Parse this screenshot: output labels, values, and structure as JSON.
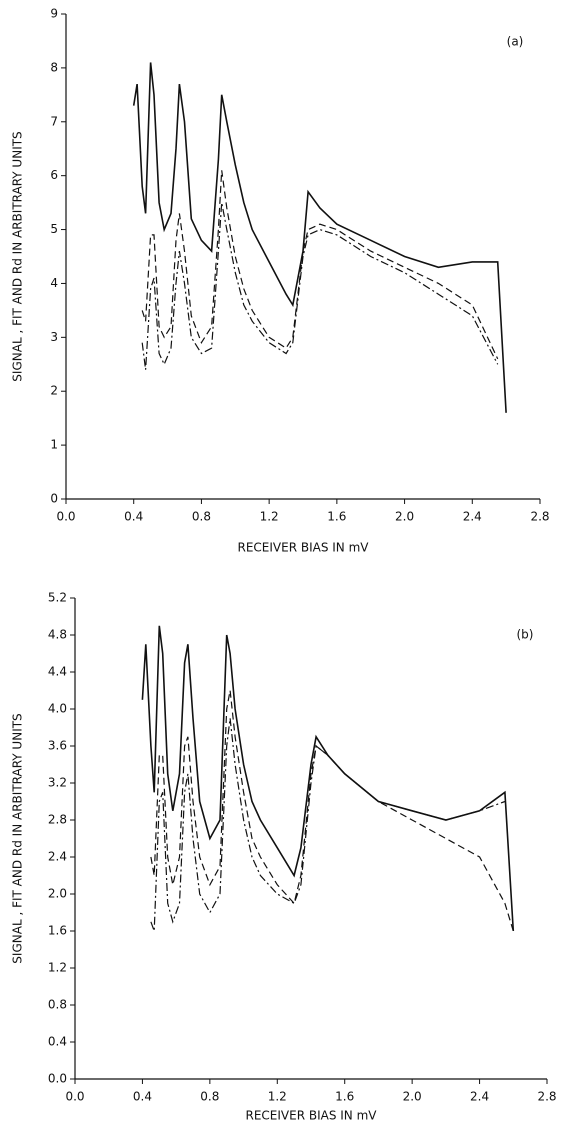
{
  "chart_data": [
    {
      "type": "line",
      "annotation": "(a)",
      "x_label": "RECEIVER BIAS IN  mV",
      "y_label": "SIGNAL , FIT AND Rd IN ARBITRARY UNITS",
      "x": [
        0.4,
        0.42,
        0.45,
        0.47,
        0.5,
        0.52,
        0.55,
        0.58,
        0.62,
        0.65,
        0.67,
        0.7,
        0.74,
        0.8,
        0.86,
        0.9,
        0.92,
        0.95,
        1.0,
        1.05,
        1.1,
        1.2,
        1.3,
        1.34,
        1.4,
        1.43,
        1.5,
        1.6,
        1.8,
        2.0,
        2.2,
        2.4,
        2.55,
        2.6
      ],
      "series": [
        {
          "color": "#111111",
          "line_style": "solid",
          "values": [
            7.3,
            7.7,
            5.8,
            5.3,
            8.1,
            7.5,
            5.5,
            5.0,
            5.3,
            6.5,
            7.7,
            7.0,
            5.2,
            4.8,
            4.6,
            6.3,
            7.5,
            7.0,
            6.2,
            5.5,
            5.0,
            4.4,
            3.8,
            3.6,
            4.6,
            5.7,
            5.4,
            5.1,
            4.8,
            4.5,
            4.3,
            4.4,
            4.4,
            1.6
          ]
        },
        {
          "color": "#111111",
          "line_style": "dashed",
          "values": [
            null,
            null,
            3.5,
            3.3,
            4.9,
            4.9,
            3.2,
            3.0,
            3.2,
            4.8,
            5.3,
            4.6,
            3.4,
            2.9,
            3.2,
            5.0,
            6.1,
            5.4,
            4.5,
            3.9,
            3.5,
            3.0,
            2.8,
            3.0,
            4.6,
            5.0,
            5.1,
            5.0,
            4.6,
            4.3,
            4.0,
            3.6,
            2.6,
            null
          ]
        },
        {
          "color": "#111111",
          "line_style": "dashdot",
          "values": [
            null,
            null,
            2.9,
            2.4,
            3.9,
            4.1,
            2.7,
            2.5,
            2.8,
            4.0,
            4.6,
            4.0,
            3.0,
            2.7,
            2.8,
            4.6,
            5.5,
            5.0,
            4.2,
            3.6,
            3.3,
            2.9,
            2.7,
            2.9,
            4.5,
            4.9,
            5.0,
            4.9,
            4.5,
            4.2,
            3.8,
            3.4,
            2.5,
            null
          ]
        }
      ],
      "xlim": [
        0,
        2.8
      ],
      "xticks": [
        {
          "value": 0,
          "label": "0.0"
        },
        0.4,
        0.8,
        1.2,
        1.6,
        {
          "value": 2,
          "label": "2.0"
        },
        2.4,
        2.8
      ],
      "ylim": [
        0,
        9
      ],
      "yticks": [
        0,
        1,
        2,
        3,
        4,
        5,
        6,
        7,
        8,
        9
      ],
      "grid": false
    },
    {
      "type": "line",
      "annotation": "(b)",
      "x_label": "RECEIVER BIAS IN  mV",
      "y_label": "SIGNAL , FIT AND Rd IN ARBITRARY UNITS",
      "x": [
        0.4,
        0.42,
        0.45,
        0.47,
        0.5,
        0.52,
        0.55,
        0.58,
        0.62,
        0.65,
        0.67,
        0.7,
        0.74,
        0.8,
        0.86,
        0.9,
        0.92,
        0.95,
        1.0,
        1.05,
        1.1,
        1.2,
        1.3,
        1.34,
        1.4,
        1.43,
        1.5,
        1.6,
        1.8,
        2.0,
        2.2,
        2.4,
        2.55,
        2.6
      ],
      "series": [
        {
          "color": "#111111",
          "line_style": "solid",
          "values": [
            4.1,
            4.7,
            3.6,
            3.1,
            4.9,
            4.6,
            3.3,
            2.9,
            3.3,
            4.5,
            4.7,
            3.9,
            3.0,
            2.6,
            2.8,
            4.8,
            4.6,
            4.0,
            3.4,
            3.0,
            2.8,
            2.5,
            2.2,
            2.5,
            3.4,
            3.7,
            3.5,
            3.3,
            3.0,
            2.9,
            2.8,
            2.9,
            3.1,
            1.6
          ]
        },
        {
          "color": "#111111",
          "line_style": "dashed",
          "values": [
            null,
            null,
            2.4,
            2.2,
            3.5,
            3.5,
            2.4,
            2.1,
            2.4,
            3.6,
            3.7,
            3.0,
            2.4,
            2.1,
            2.3,
            4.0,
            4.2,
            3.7,
            3.1,
            2.6,
            2.4,
            2.1,
            1.9,
            2.2,
            3.3,
            3.6,
            3.5,
            3.3,
            3.0,
            2.8,
            2.6,
            2.4,
            1.9,
            1.6
          ]
        },
        {
          "color": "#111111",
          "line_style": "dashdot",
          "values": [
            null,
            null,
            1.7,
            1.6,
            3.0,
            3.1,
            1.9,
            1.7,
            1.9,
            3.1,
            3.3,
            2.6,
            2.0,
            1.8,
            2.0,
            3.6,
            3.9,
            3.4,
            2.8,
            2.4,
            2.2,
            2.0,
            1.9,
            2.1,
            3.2,
            3.6,
            3.5,
            3.3,
            3.0,
            2.9,
            2.8,
            2.9,
            3.0,
            null
          ]
        }
      ],
      "xlim": [
        0,
        2.8
      ],
      "xticks": [
        {
          "value": 0,
          "label": "0.0"
        },
        0.4,
        0.8,
        1.2,
        1.6,
        {
          "value": 2,
          "label": "2.0"
        },
        2.4,
        2.8
      ],
      "ylim": [
        0,
        5.2
      ],
      "yticks": [
        {
          "value": 0,
          "label": "0.0"
        },
        0.4,
        0.8,
        1.2,
        1.6,
        {
          "value": 2,
          "label": "2.0"
        },
        2.4,
        2.8,
        3.2,
        3.6,
        {
          "value": 4,
          "label": "4.0"
        },
        4.4,
        4.8,
        5.2
      ],
      "grid": false
    }
  ]
}
